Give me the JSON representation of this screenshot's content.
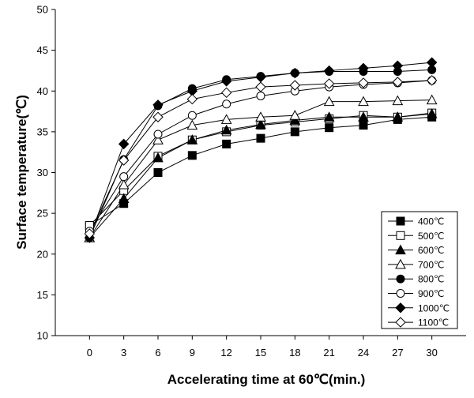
{
  "chart_data": {
    "type": "line",
    "xlabel": "Accelerating time at 60℃(min.)",
    "ylabel": "Surface temperature(℃)",
    "x": [
      0,
      3,
      6,
      9,
      12,
      15,
      18,
      21,
      24,
      27,
      30
    ],
    "xlim": [
      -3,
      33
    ],
    "ylim": [
      10,
      50
    ],
    "yticks": [
      10,
      15,
      20,
      25,
      30,
      35,
      40,
      45,
      50
    ],
    "grid": false,
    "legend_position": "right",
    "series": [
      {
        "name": "400℃",
        "marker": "square-filled",
        "values": [
          23.5,
          26.2,
          30.0,
          32.1,
          33.5,
          34.2,
          35.0,
          35.5,
          35.8,
          36.5,
          36.8
        ]
      },
      {
        "name": "500℃",
        "marker": "square-open",
        "values": [
          23.5,
          27.8,
          32.0,
          34.0,
          35.0,
          35.8,
          36.2,
          36.6,
          37.0,
          36.8,
          37.3
        ]
      },
      {
        "name": "600℃",
        "marker": "triangle-filled",
        "values": [
          22.0,
          26.8,
          31.8,
          34.0,
          35.2,
          35.9,
          36.4,
          36.8,
          36.8,
          36.8,
          37.2
        ]
      },
      {
        "name": "700℃",
        "marker": "triangle-open",
        "values": [
          22.0,
          28.5,
          34.0,
          35.8,
          36.5,
          36.8,
          37.0,
          38.7,
          38.7,
          38.8,
          38.9
        ]
      },
      {
        "name": "800℃",
        "marker": "circle-filled",
        "values": [
          22.0,
          31.6,
          38.2,
          40.3,
          41.4,
          41.8,
          42.2,
          42.4,
          42.4,
          42.4,
          42.6
        ]
      },
      {
        "name": "900℃",
        "marker": "circle-open",
        "values": [
          22.8,
          29.5,
          34.7,
          37.0,
          38.4,
          39.4,
          40.0,
          40.5,
          40.8,
          41.0,
          41.3
        ]
      },
      {
        "name": "1000℃",
        "marker": "diamond-filled",
        "values": [
          22.0,
          33.5,
          38.3,
          40.0,
          41.2,
          41.7,
          42.2,
          42.5,
          42.8,
          43.1,
          43.5
        ]
      },
      {
        "name": "1100℃",
        "marker": "diamond-open",
        "values": [
          22.5,
          31.5,
          36.8,
          39.0,
          39.8,
          40.5,
          40.7,
          40.9,
          41.0,
          41.1,
          41.3
        ]
      }
    ]
  }
}
